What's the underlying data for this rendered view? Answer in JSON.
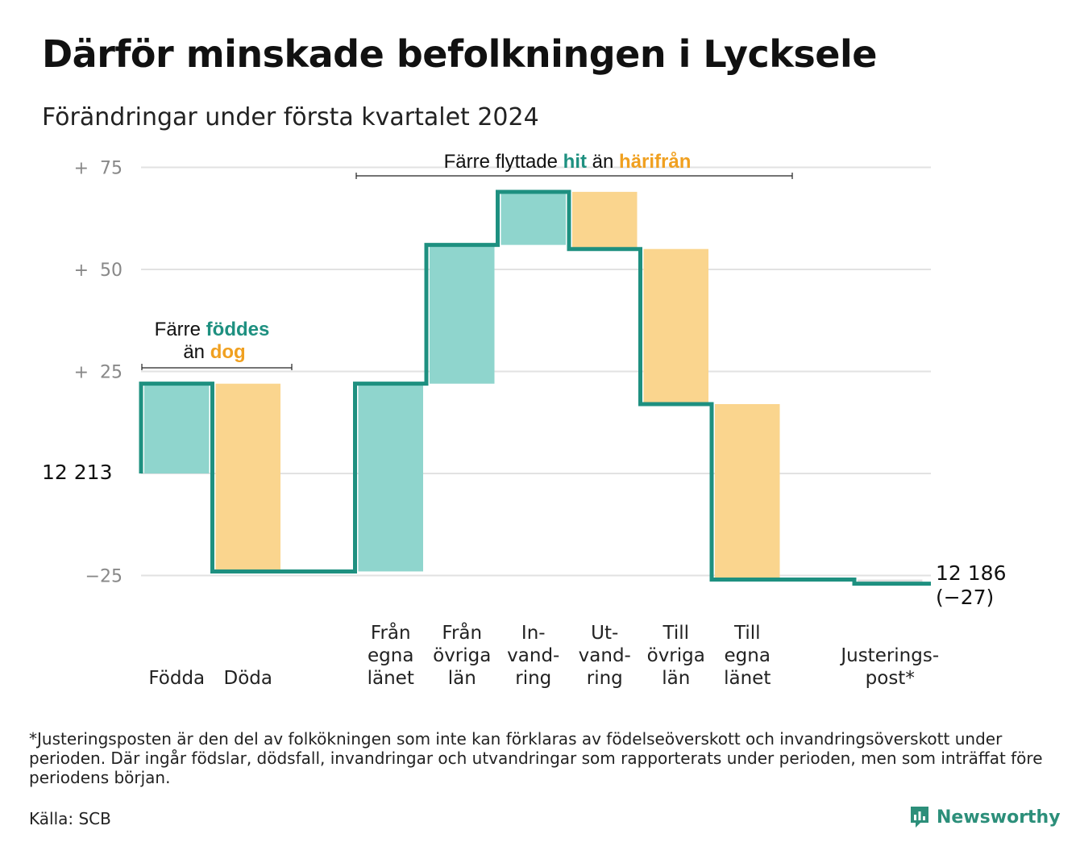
{
  "title": "Därför minskade befolkningen i Lycksele",
  "subtitle": "Förändringar under första kvartalet 2024",
  "footnote": "*Justeringsposten är den del av folkökningen som inte kan förklaras av födelseöverskott och invandringsöverskott under perioden. Där ingår födslar, dödsfall, invandringar och utvandringar som rapporterats under perioden, men som inträffat före periodens början.",
  "source": "Källa: SCB",
  "brand": "Newsworthy",
  "colors": {
    "increase": "#8fd5cd",
    "decrease": "#fad58e",
    "line": "#1e9080",
    "adjust": "#dddddd",
    "accent_teal": "#1e9080",
    "accent_orange": "#f0a020"
  },
  "annotations": {
    "births": {
      "line1_pre": "Färre ",
      "line1_hl": "föddes",
      "line2_pre": "än ",
      "line2_hl": "dog"
    },
    "moves": {
      "pre": "Färre flyttade ",
      "hl1": "hit",
      "mid": " än ",
      "hl2": "härifrån"
    }
  },
  "chart_data": {
    "type": "waterfall",
    "title": "Därför minskade befolkningen i Lycksele",
    "subtitle": "Förändringar under första kvartalet 2024",
    "start_value": 12213,
    "start_label": "12 213",
    "end_value": 12186,
    "end_label": "12 186",
    "end_change_label": "(−27)",
    "ylim": [
      -30,
      80
    ],
    "yticks": [
      {
        "value": 75,
        "label": "+  75"
      },
      {
        "value": 50,
        "label": "+  50"
      },
      {
        "value": 25,
        "label": "+  25"
      },
      {
        "value": -25,
        "label": "−25"
      }
    ],
    "gridlines": [
      75,
      50,
      25,
      0,
      -25
    ],
    "steps": [
      {
        "label": [
          "Födda"
        ],
        "value": 22,
        "slot": 0
      },
      {
        "label": [
          "Döda"
        ],
        "value": -46,
        "slot": 1
      },
      {
        "label": [
          "Från",
          "egna",
          "länet"
        ],
        "value": 46,
        "slot": 3
      },
      {
        "label": [
          "Från",
          "övriga",
          "län"
        ],
        "value": 34,
        "slot": 4
      },
      {
        "label": [
          "In-",
          "vand-",
          "ring"
        ],
        "value": 13,
        "slot": 5
      },
      {
        "label": [
          "Ut-",
          "vand-",
          "ring"
        ],
        "value": -14,
        "slot": 6
      },
      {
        "label": [
          "Till",
          "övriga",
          "län"
        ],
        "value": -38,
        "slot": 7
      },
      {
        "label": [
          "Till",
          "egna",
          "länet"
        ],
        "value": -43,
        "slot": 8
      },
      {
        "label": [
          "Justerings-",
          "post*"
        ],
        "value": -1,
        "slot": 10
      }
    ]
  }
}
